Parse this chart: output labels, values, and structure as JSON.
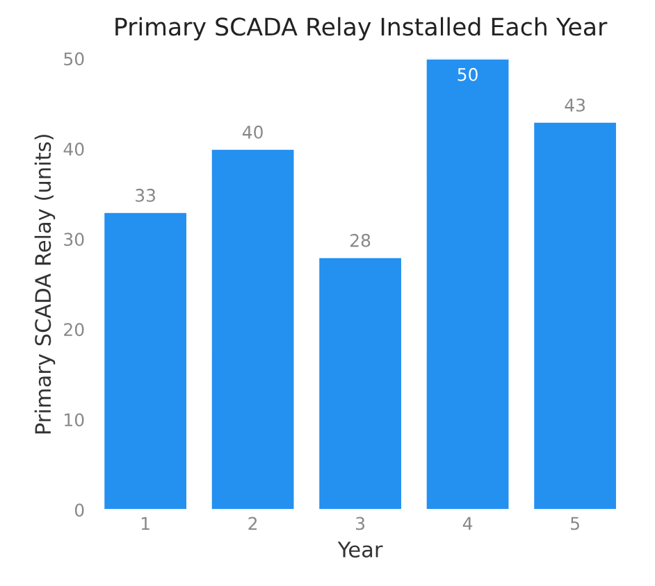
{
  "chart_data": {
    "type": "bar",
    "title": "Primary SCADA Relay Installed Each Year",
    "xlabel": "Year",
    "ylabel": "Primary SCADA Relay (units)",
    "categories": [
      "1",
      "2",
      "3",
      "4",
      "5"
    ],
    "values": [
      33,
      40,
      28,
      50,
      43
    ],
    "color": "#2490f0",
    "ylim": [
      0,
      50
    ],
    "yticks": [
      0,
      10,
      20,
      30,
      40,
      50
    ],
    "data_labels": true,
    "grid": false,
    "legend": false
  }
}
